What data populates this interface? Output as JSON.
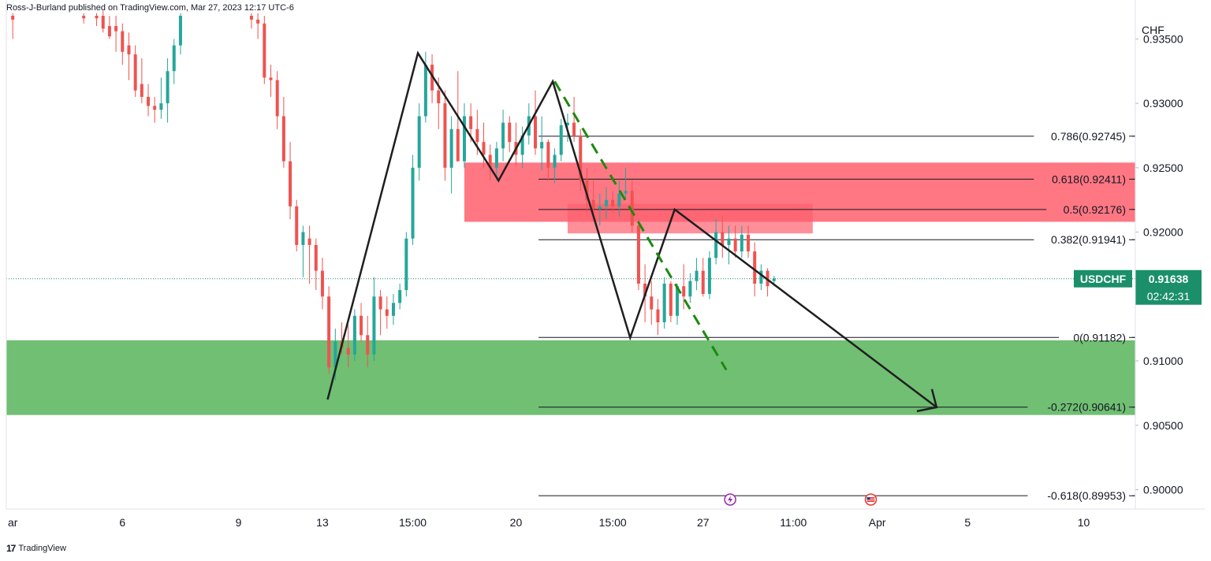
{
  "header": {
    "publisher_line": "Ross-J-Burland published on TradingView.com, Mar 27, 2023 12:17 UTC-6"
  },
  "footer": {
    "brand": "TradingView",
    "brand_mark": "17"
  },
  "colors": {
    "bull": "#26a69a",
    "bear": "#ef5350",
    "supply_zone": "#ff5f6d",
    "demand_zone": "#4caf50",
    "pattern_line": "#1f1f1f",
    "projection": "#1b8a0e",
    "last_price_tag": "#1a8f6a",
    "grid": "#e0e3eb"
  },
  "chart_data": {
    "type": "candlestick",
    "symbol": "USDCHF",
    "currency": "CHF",
    "last_price": "0.91638",
    "countdown": "02:42:31",
    "y_ticks": [
      "0.93500",
      "0.93000",
      "0.92500",
      "0.92000",
      "0.91000",
      "0.90500",
      "0.90000"
    ],
    "y_tick_values": [
      0.935,
      0.93,
      0.925,
      0.92,
      0.91,
      0.905,
      0.9
    ],
    "ylim": [
      0.8985,
      0.9368
    ],
    "xlim": [
      0,
      175
    ],
    "x_ticks": [
      {
        "label": "ar",
        "pos": 0
      },
      {
        "label": "6",
        "pos": 18
      },
      {
        "label": "9",
        "pos": 36
      },
      {
        "label": "13",
        "pos": 49
      },
      {
        "label": "15:00",
        "pos": 63
      },
      {
        "label": "20",
        "pos": 79
      },
      {
        "label": "15:00",
        "pos": 94
      },
      {
        "label": "27",
        "pos": 108
      },
      {
        "label": "11:00",
        "pos": 122
      },
      {
        "label": "Apr",
        "pos": 135
      },
      {
        "label": "5",
        "pos": 149
      },
      {
        "label": "10",
        "pos": 167
      }
    ],
    "candles": [
      {
        "t": 1,
        "o": 0.9368,
        "h": 0.937,
        "l": 0.935,
        "c": 0.9365
      },
      {
        "t": 12,
        "o": 0.9368,
        "h": 0.937,
        "l": 0.9362,
        "c": 0.9366
      },
      {
        "t": 14,
        "o": 0.9368,
        "h": 0.937,
        "l": 0.936,
        "c": 0.9366
      },
      {
        "t": 15,
        "o": 0.9368,
        "h": 0.9372,
        "l": 0.9355,
        "c": 0.9358
      },
      {
        "t": 16,
        "o": 0.936,
        "h": 0.9368,
        "l": 0.935,
        "c": 0.9352
      },
      {
        "t": 17,
        "o": 0.936,
        "h": 0.9368,
        "l": 0.934,
        "c": 0.9356
      },
      {
        "t": 18,
        "o": 0.9356,
        "h": 0.9362,
        "l": 0.933,
        "c": 0.934
      },
      {
        "t": 19,
        "o": 0.9345,
        "h": 0.9355,
        "l": 0.9318,
        "c": 0.9338
      },
      {
        "t": 20,
        "o": 0.9338,
        "h": 0.9345,
        "l": 0.9305,
        "c": 0.931
      },
      {
        "t": 21,
        "o": 0.9315,
        "h": 0.9335,
        "l": 0.93,
        "c": 0.9305
      },
      {
        "t": 22,
        "o": 0.9305,
        "h": 0.9315,
        "l": 0.929,
        "c": 0.9298
      },
      {
        "t": 23,
        "o": 0.9298,
        "h": 0.9305,
        "l": 0.9285,
        "c": 0.9295
      },
      {
        "t": 24,
        "o": 0.9295,
        "h": 0.932,
        "l": 0.9288,
        "c": 0.93
      },
      {
        "t": 25,
        "o": 0.93,
        "h": 0.9335,
        "l": 0.9285,
        "c": 0.9325
      },
      {
        "t": 26,
        "o": 0.9325,
        "h": 0.935,
        "l": 0.9315,
        "c": 0.9345
      },
      {
        "t": 27,
        "o": 0.9345,
        "h": 0.937,
        "l": 0.9338,
        "c": 0.9368
      },
      {
        "t": 38,
        "o": 0.9368,
        "h": 0.937,
        "l": 0.9358,
        "c": 0.9365
      },
      {
        "t": 39,
        "o": 0.9365,
        "h": 0.937,
        "l": 0.935,
        "c": 0.9362
      },
      {
        "t": 40,
        "o": 0.9362,
        "h": 0.9368,
        "l": 0.9315,
        "c": 0.932
      },
      {
        "t": 41,
        "o": 0.932,
        "h": 0.933,
        "l": 0.9305,
        "c": 0.9318
      },
      {
        "t": 42,
        "o": 0.9318,
        "h": 0.9325,
        "l": 0.928,
        "c": 0.929
      },
      {
        "t": 43,
        "o": 0.929,
        "h": 0.9305,
        "l": 0.925,
        "c": 0.9255
      },
      {
        "t": 44,
        "o": 0.9255,
        "h": 0.927,
        "l": 0.921,
        "c": 0.922
      },
      {
        "t": 45,
        "o": 0.922,
        "h": 0.9225,
        "l": 0.9185,
        "c": 0.919
      },
      {
        "t": 46,
        "o": 0.919,
        "h": 0.9205,
        "l": 0.9165,
        "c": 0.92
      },
      {
        "t": 47,
        "o": 0.9195,
        "h": 0.9205,
        "l": 0.916,
        "c": 0.919
      },
      {
        "t": 48,
        "o": 0.919,
        "h": 0.9195,
        "l": 0.9155,
        "c": 0.917
      },
      {
        "t": 49,
        "o": 0.917,
        "h": 0.918,
        "l": 0.914,
        "c": 0.915
      },
      {
        "t": 50,
        "o": 0.915,
        "h": 0.9158,
        "l": 0.909,
        "c": 0.9095
      },
      {
        "t": 51,
        "o": 0.9095,
        "h": 0.9125,
        "l": 0.9085,
        "c": 0.9115
      },
      {
        "t": 52,
        "o": 0.9115,
        "h": 0.913,
        "l": 0.9105,
        "c": 0.911
      },
      {
        "t": 53,
        "o": 0.911,
        "h": 0.9128,
        "l": 0.9095,
        "c": 0.9105
      },
      {
        "t": 54,
        "o": 0.9105,
        "h": 0.914,
        "l": 0.91,
        "c": 0.9135
      },
      {
        "t": 55,
        "o": 0.9135,
        "h": 0.9145,
        "l": 0.9115,
        "c": 0.912
      },
      {
        "t": 56,
        "o": 0.912,
        "h": 0.9135,
        "l": 0.9095,
        "c": 0.9105
      },
      {
        "t": 57,
        "o": 0.9105,
        "h": 0.9165,
        "l": 0.91,
        "c": 0.915
      },
      {
        "t": 58,
        "o": 0.915,
        "h": 0.9155,
        "l": 0.912,
        "c": 0.914
      },
      {
        "t": 59,
        "o": 0.914,
        "h": 0.915,
        "l": 0.9125,
        "c": 0.9135
      },
      {
        "t": 60,
        "o": 0.9135,
        "h": 0.9152,
        "l": 0.9128,
        "c": 0.9145
      },
      {
        "t": 61,
        "o": 0.9145,
        "h": 0.916,
        "l": 0.914,
        "c": 0.9155
      },
      {
        "t": 62,
        "o": 0.9155,
        "h": 0.92,
        "l": 0.915,
        "c": 0.9195
      },
      {
        "t": 63,
        "o": 0.9195,
        "h": 0.926,
        "l": 0.919,
        "c": 0.925
      },
      {
        "t": 64,
        "o": 0.925,
        "h": 0.93,
        "l": 0.924,
        "c": 0.929
      },
      {
        "t": 65,
        "o": 0.929,
        "h": 0.934,
        "l": 0.9285,
        "c": 0.933
      },
      {
        "t": 66,
        "o": 0.933,
        "h": 0.9338,
        "l": 0.93,
        "c": 0.931
      },
      {
        "t": 67,
        "o": 0.931,
        "h": 0.932,
        "l": 0.928,
        "c": 0.93
      },
      {
        "t": 68,
        "o": 0.93,
        "h": 0.931,
        "l": 0.924,
        "c": 0.925
      },
      {
        "t": 69,
        "o": 0.925,
        "h": 0.929,
        "l": 0.923,
        "c": 0.928
      },
      {
        "t": 70,
        "o": 0.928,
        "h": 0.9325,
        "l": 0.9255,
        "c": 0.9255
      },
      {
        "t": 71,
        "o": 0.9255,
        "h": 0.93,
        "l": 0.925,
        "c": 0.929
      },
      {
        "t": 72,
        "o": 0.929,
        "h": 0.93,
        "l": 0.927,
        "c": 0.928
      },
      {
        "t": 73,
        "o": 0.928,
        "h": 0.9295,
        "l": 0.926,
        "c": 0.927
      },
      {
        "t": 74,
        "o": 0.927,
        "h": 0.9285,
        "l": 0.925,
        "c": 0.926
      },
      {
        "t": 75,
        "o": 0.926,
        "h": 0.9268,
        "l": 0.924,
        "c": 0.925
      },
      {
        "t": 76,
        "o": 0.925,
        "h": 0.927,
        "l": 0.924,
        "c": 0.9265
      },
      {
        "t": 77,
        "o": 0.9265,
        "h": 0.9295,
        "l": 0.9255,
        "c": 0.9285
      },
      {
        "t": 78,
        "o": 0.9285,
        "h": 0.929,
        "l": 0.9262,
        "c": 0.927
      },
      {
        "t": 79,
        "o": 0.927,
        "h": 0.9285,
        "l": 0.9252,
        "c": 0.926
      },
      {
        "t": 80,
        "o": 0.926,
        "h": 0.9282,
        "l": 0.925,
        "c": 0.9275
      },
      {
        "t": 81,
        "o": 0.9275,
        "h": 0.93,
        "l": 0.9268,
        "c": 0.929
      },
      {
        "t": 82,
        "o": 0.929,
        "h": 0.931,
        "l": 0.926,
        "c": 0.9265
      },
      {
        "t": 83,
        "o": 0.9265,
        "h": 0.929,
        "l": 0.9248,
        "c": 0.927
      },
      {
        "t": 84,
        "o": 0.927,
        "h": 0.9272,
        "l": 0.924,
        "c": 0.925
      },
      {
        "t": 85,
        "o": 0.925,
        "h": 0.9265,
        "l": 0.9238,
        "c": 0.926
      },
      {
        "t": 86,
        "o": 0.926,
        "h": 0.9288,
        "l": 0.9255,
        "c": 0.9283
      },
      {
        "t": 87,
        "o": 0.9283,
        "h": 0.9292,
        "l": 0.927,
        "c": 0.9285
      },
      {
        "t": 88,
        "o": 0.9285,
        "h": 0.9305,
        "l": 0.927,
        "c": 0.9275
      },
      {
        "t": 89,
        "o": 0.9275,
        "h": 0.928,
        "l": 0.9232,
        "c": 0.924
      },
      {
        "t": 90,
        "o": 0.924,
        "h": 0.925,
        "l": 0.9215,
        "c": 0.9225
      },
      {
        "t": 91,
        "o": 0.9225,
        "h": 0.924,
        "l": 0.921,
        "c": 0.9218
      },
      {
        "t": 92,
        "o": 0.9218,
        "h": 0.923,
        "l": 0.9205,
        "c": 0.922
      },
      {
        "t": 93,
        "o": 0.922,
        "h": 0.9235,
        "l": 0.921,
        "c": 0.9225
      },
      {
        "t": 94,
        "o": 0.9225,
        "h": 0.9232,
        "l": 0.9215,
        "c": 0.922
      },
      {
        "t": 95,
        "o": 0.922,
        "h": 0.924,
        "l": 0.9212,
        "c": 0.923
      },
      {
        "t": 96,
        "o": 0.923,
        "h": 0.925,
        "l": 0.9225,
        "c": 0.9232
      },
      {
        "t": 97,
        "o": 0.9232,
        "h": 0.924,
        "l": 0.92,
        "c": 0.9205
      },
      {
        "t": 98,
        "o": 0.9205,
        "h": 0.921,
        "l": 0.9155,
        "c": 0.916
      },
      {
        "t": 99,
        "o": 0.916,
        "h": 0.9175,
        "l": 0.913,
        "c": 0.915
      },
      {
        "t": 100,
        "o": 0.915,
        "h": 0.9162,
        "l": 0.9128,
        "c": 0.914
      },
      {
        "t": 101,
        "o": 0.914,
        "h": 0.9148,
        "l": 0.912,
        "c": 0.913
      },
      {
        "t": 102,
        "o": 0.913,
        "h": 0.9165,
        "l": 0.9125,
        "c": 0.916
      },
      {
        "t": 103,
        "o": 0.916,
        "h": 0.9162,
        "l": 0.913,
        "c": 0.9135
      },
      {
        "t": 104,
        "o": 0.9135,
        "h": 0.916,
        "l": 0.9128,
        "c": 0.9158
      },
      {
        "t": 105,
        "o": 0.9158,
        "h": 0.9175,
        "l": 0.914,
        "c": 0.915
      },
      {
        "t": 106,
        "o": 0.915,
        "h": 0.9168,
        "l": 0.9145,
        "c": 0.9162
      },
      {
        "t": 107,
        "o": 0.9162,
        "h": 0.918,
        "l": 0.9155,
        "c": 0.917
      },
      {
        "t": 108,
        "o": 0.917,
        "h": 0.918,
        "l": 0.915,
        "c": 0.9152
      },
      {
        "t": 109,
        "o": 0.9152,
        "h": 0.9185,
        "l": 0.9148,
        "c": 0.918
      },
      {
        "t": 110,
        "o": 0.918,
        "h": 0.921,
        "l": 0.9175,
        "c": 0.92
      },
      {
        "t": 111,
        "o": 0.92,
        "h": 0.9212,
        "l": 0.918,
        "c": 0.919
      },
      {
        "t": 112,
        "o": 0.919,
        "h": 0.9205,
        "l": 0.9175,
        "c": 0.9195
      },
      {
        "t": 113,
        "o": 0.9195,
        "h": 0.9205,
        "l": 0.918,
        "c": 0.9185
      },
      {
        "t": 114,
        "o": 0.9185,
        "h": 0.9205,
        "l": 0.918,
        "c": 0.9198
      },
      {
        "t": 115,
        "o": 0.9198,
        "h": 0.9205,
        "l": 0.918,
        "c": 0.9185
      },
      {
        "t": 116,
        "o": 0.9185,
        "h": 0.9192,
        "l": 0.915,
        "c": 0.916
      },
      {
        "t": 117,
        "o": 0.916,
        "h": 0.9175,
        "l": 0.9155,
        "c": 0.917
      },
      {
        "t": 118,
        "o": 0.917,
        "h": 0.9172,
        "l": 0.915,
        "c": 0.9158
      },
      {
        "t": 119,
        "o": 0.9162,
        "h": 0.9166,
        "l": 0.9158,
        "c": 0.9164
      }
    ],
    "pattern_points": [
      {
        "t": 49.8,
        "v": 0.907
      },
      {
        "t": 63.8,
        "v": 0.9339
      },
      {
        "t": 76.3,
        "v": 0.924
      },
      {
        "t": 84.7,
        "v": 0.9317
      },
      {
        "t": 96.7,
        "v": 0.9118
      },
      {
        "t": 103.6,
        "v": 0.92176
      },
      {
        "t": 144.2,
        "v": 0.9064
      }
    ],
    "projection_line": [
      {
        "t": 85.0,
        "v": 0.9317
      },
      {
        "t": 111.6,
        "v": 0.9093
      }
    ],
    "supply_zones": [
      {
        "t0": 71,
        "t1": 178,
        "v0": 0.9208,
        "v1": 0.9254
      },
      {
        "t0": 87,
        "t1": 125,
        "v0": 0.9199,
        "v1": 0.9222
      }
    ],
    "demand_zone": {
      "t0": 0,
      "t1": 178,
      "v0": 0.9058,
      "v1": 0.9116
    },
    "fib_levels": [
      {
        "ratio": "0.786",
        "value": 0.92745,
        "label": "0.786(0.92745)"
      },
      {
        "ratio": "0.618",
        "value": 0.92411,
        "label": "0.618(0.92411)"
      },
      {
        "ratio": "0.5",
        "value": 0.92176,
        "label": "0.5(0.92176)"
      },
      {
        "ratio": "0.382",
        "value": 0.91941,
        "label": "0.382(0.91941)"
      },
      {
        "ratio": "0",
        "value": 0.91182,
        "label": "0(0.91182)"
      },
      {
        "ratio": "-0.272",
        "value": 0.90641,
        "label": "-0.272(0.90641)"
      },
      {
        "ratio": "-0.618",
        "value": 0.89953,
        "label": "-0.618(0.89953)"
      }
    ],
    "fib_x_range": [
      82.5,
      178
    ],
    "event_markers": [
      {
        "kind": "earnings-lightning",
        "t": 112.2
      },
      {
        "kind": "economic-event-flag",
        "t": 134.0
      }
    ]
  }
}
